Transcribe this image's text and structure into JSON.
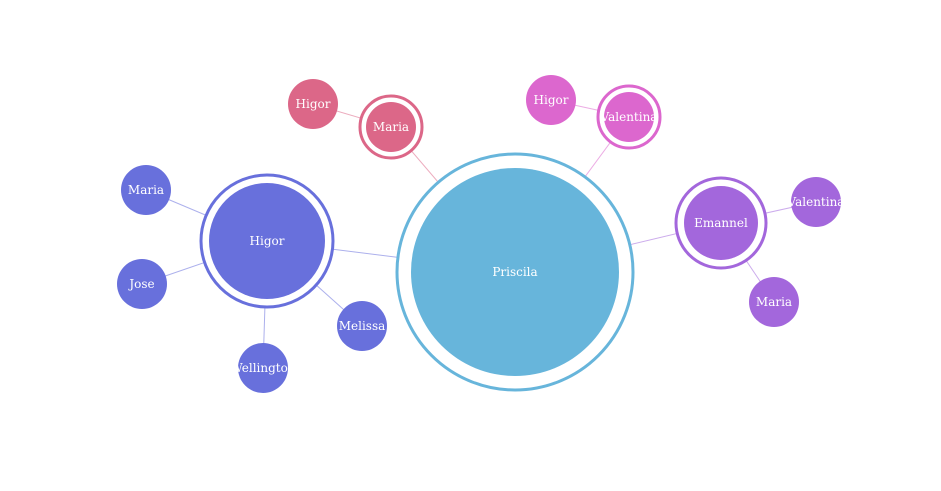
{
  "palette": {
    "priscila": "#67b5db",
    "higor_group": "#6870dc",
    "maria_group": "#dc6788",
    "valentina_group": "#dc67ce",
    "emanuel_group": "#a367dc",
    "background": "#ffffff"
  },
  "nodes": [
    {
      "id": "priscila",
      "label": "Priscila",
      "color": "#67b5db",
      "ring": true
    },
    {
      "id": "higor-hub",
      "label": "Higor",
      "color": "#6870dc",
      "ring": true
    },
    {
      "id": "higor-maria",
      "label": "Maria",
      "color": "#6870dc",
      "ring": false
    },
    {
      "id": "higor-jose",
      "label": "Jose",
      "color": "#6870dc",
      "ring": false
    },
    {
      "id": "higor-wellington",
      "label": "Wellington",
      "color": "#6870dc",
      "ring": false
    },
    {
      "id": "higor-melissa",
      "label": "Melissa",
      "color": "#6870dc",
      "ring": false
    },
    {
      "id": "maria-hub",
      "label": "Maria",
      "color": "#dc6788",
      "ring": true
    },
    {
      "id": "maria-higor",
      "label": "Higor",
      "color": "#dc6788",
      "ring": false
    },
    {
      "id": "valentina-hub",
      "label": "Valentina",
      "color": "#dc67ce",
      "ring": true
    },
    {
      "id": "valentina-higor",
      "label": "Higor",
      "color": "#dc67ce",
      "ring": false
    },
    {
      "id": "emanuel-hub",
      "label": "Emannel",
      "color": "#a367dc",
      "ring": true
    },
    {
      "id": "emanuel-valentina",
      "label": "Valentina",
      "color": "#a367dc",
      "ring": false
    },
    {
      "id": "emanuel-maria",
      "label": "Maria",
      "color": "#a367dc",
      "ring": false
    }
  ],
  "links": [
    {
      "source": "priscila",
      "target": "higor-hub",
      "color": "#6870dc"
    },
    {
      "source": "priscila",
      "target": "maria-hub",
      "color": "#dc6788"
    },
    {
      "source": "priscila",
      "target": "valentina-hub",
      "color": "#dc67ce"
    },
    {
      "source": "priscila",
      "target": "emanuel-hub",
      "color": "#a367dc"
    },
    {
      "source": "higor-hub",
      "target": "higor-maria",
      "color": "#6870dc"
    },
    {
      "source": "higor-hub",
      "target": "higor-jose",
      "color": "#6870dc"
    },
    {
      "source": "higor-hub",
      "target": "higor-wellington",
      "color": "#6870dc"
    },
    {
      "source": "higor-hub",
      "target": "higor-melissa",
      "color": "#6870dc"
    },
    {
      "source": "maria-hub",
      "target": "maria-higor",
      "color": "#dc6788"
    },
    {
      "source": "valentina-hub",
      "target": "valentina-higor",
      "color": "#dc67ce"
    },
    {
      "source": "emanuel-hub",
      "target": "emanuel-valentina",
      "color": "#a367dc"
    },
    {
      "source": "emanuel-hub",
      "target": "emanuel-maria",
      "color": "#a367dc"
    }
  ]
}
